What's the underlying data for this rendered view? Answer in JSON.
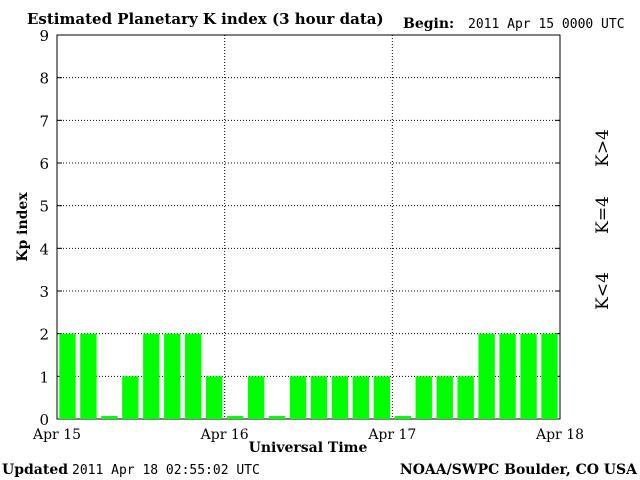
{
  "chart_data": {
    "type": "bar",
    "title": "Estimated Planetary K index (3 hour data)",
    "begin_label": "Begin:",
    "begin_value": "2011 Apr 15 0000 UTC",
    "ylabel": "Kp index",
    "xlabel": "Universal Time",
    "ylim": [
      0,
      9
    ],
    "yticks": [
      "0",
      "1",
      "2",
      "3",
      "4",
      "5",
      "6",
      "7",
      "8",
      "9"
    ],
    "xticks": [
      "Apr 15",
      "Apr 16",
      "Apr 17",
      "Apr 18"
    ],
    "bar_color": "#00ff00",
    "values": [
      2,
      2,
      0,
      1,
      2,
      2,
      2,
      1,
      0,
      1,
      0,
      1,
      1,
      1,
      1,
      1,
      0,
      1,
      1,
      1,
      2,
      2,
      2,
      2
    ],
    "legend": [
      {
        "text": "K>4",
        "color": "#ff2200"
      },
      {
        "text": "K=4",
        "color": "#ffcc00"
      },
      {
        "text": "K<4",
        "color": "#00ff00"
      }
    ],
    "grid": "dotted"
  },
  "footer": {
    "updated_label": "Updated",
    "updated_value": "2011 Apr 18 02:55:02 UTC",
    "source": "NOAA/SWPC Boulder, CO USA"
  }
}
